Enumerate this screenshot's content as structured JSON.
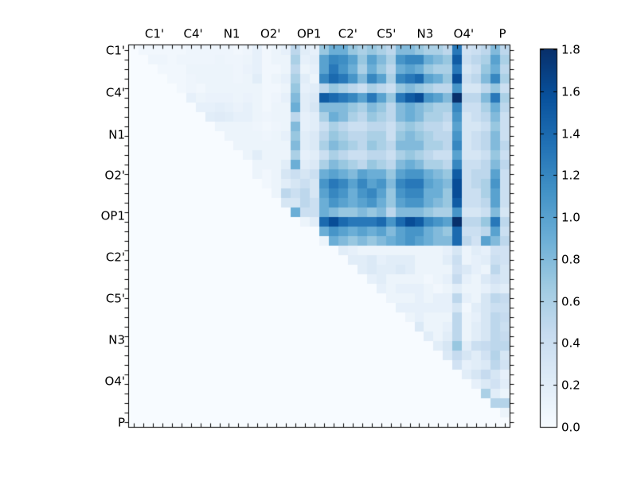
{
  "chart_data": {
    "type": "heatmap",
    "title": "",
    "xlabel": "",
    "ylabel": "",
    "x_tick_labels": [
      "C1'",
      "C4'",
      "N1",
      "O2'",
      "OP1",
      "C2'",
      "C5'",
      "N3",
      "O4'",
      "P"
    ],
    "y_tick_labels": [
      "C1'",
      "C4'",
      "N1",
      "O2'",
      "OP1",
      "C2'",
      "C5'",
      "N3",
      "O4'",
      "P"
    ],
    "n_cells": 40,
    "value_range": [
      0.0,
      1.8
    ],
    "matrix_form": "upper-triangular",
    "colormap": "Blues",
    "colormap_stops": [
      "#f7fbff",
      "#deebf7",
      "#c6dbef",
      "#9ecae1",
      "#6baed6",
      "#4292c6",
      "#2171b5",
      "#08519c",
      "#08306b"
    ],
    "colorbar": {
      "min": 0.0,
      "max": 1.8,
      "tick_step": 0.2,
      "tick_labels": [
        "1.8",
        "1.6",
        "1.4",
        "1.2",
        "1.0",
        "0.8",
        "0.6",
        "0.4",
        "0.2",
        "0.0"
      ],
      "position": "right"
    },
    "values_upper_triangle_from_diagonal": [
      [
        0,
        0.05,
        0.05,
        0.05,
        0.05,
        0.05,
        0.08,
        0.08,
        0.08,
        0.08,
        0.08,
        0.05,
        0.08,
        0.15,
        0.05,
        0.1,
        0.15,
        0.5,
        0.2,
        0.15,
        0.7,
        0.9,
        0.9,
        0.7,
        0.6,
        0.7,
        0.6,
        0.5,
        0.8,
        0.8,
        0.7,
        0.6,
        0.6,
        0.5,
        1.3,
        0.35,
        0.4,
        0.5,
        0.8,
        0.5
      ],
      [
        0,
        0.08,
        0.08,
        0.05,
        0.08,
        0.08,
        0.08,
        0.08,
        0.1,
        0.08,
        0.08,
        0.1,
        0.15,
        0.05,
        0.1,
        0.1,
        0.6,
        0.15,
        0.2,
        1,
        1.2,
        1.15,
        1,
        0.7,
        1,
        0.8,
        0.6,
        1.1,
        1.2,
        1.2,
        0.9,
        0.8,
        0.7,
        1.5,
        0.4,
        0.5,
        0.6,
        1,
        0.6
      ],
      [
        0,
        0.05,
        0.05,
        0.05,
        0.1,
        0.1,
        0.1,
        0.1,
        0.1,
        0.08,
        0.12,
        0.15,
        0.05,
        0.05,
        0.1,
        0.5,
        0.1,
        0.15,
        1,
        1.3,
        1.1,
        0.9,
        0.6,
        0.9,
        0.7,
        0.5,
        0.9,
        1,
        0.9,
        0.7,
        0.6,
        0.6,
        1.3,
        0.3,
        0.4,
        0.7,
        0.9,
        0.5
      ],
      [
        0,
        0.05,
        0.05,
        0.08,
        0.1,
        0.1,
        0.1,
        0.1,
        0.08,
        0.1,
        0.2,
        0.05,
        0.1,
        0.15,
        0.6,
        0.2,
        0.1,
        1.2,
        1.4,
        1.3,
        1.1,
        0.8,
        1.2,
        1,
        0.6,
        1.2,
        1.3,
        1.4,
        1,
        0.9,
        0.7,
        1.6,
        0.4,
        0.5,
        0.8,
        1.2,
        0.6
      ],
      [
        0,
        0.05,
        0.08,
        0.05,
        0.1,
        0.1,
        0.1,
        0.1,
        0.1,
        0.1,
        0.05,
        0.05,
        0.1,
        0.7,
        0.15,
        0.2,
        0.5,
        0.7,
        0.6,
        0.5,
        0.4,
        0.6,
        0.5,
        0.4,
        0.7,
        0.8,
        0.7,
        0.6,
        0.5,
        0.5,
        1.1,
        0.3,
        0.3,
        0.5,
        0.7,
        0.4
      ],
      [
        0,
        0.15,
        0.1,
        0.12,
        0.12,
        0.12,
        0.1,
        0.12,
        0.1,
        0.05,
        0.08,
        0.15,
        0.8,
        0.2,
        0.25,
        1.5,
        1.4,
        1.3,
        1.2,
        1,
        1.3,
        1,
        0.7,
        1.3,
        1.5,
        1.6,
        1.1,
        1,
        0.8,
        1.8,
        0.5,
        0.5,
        0.8,
        1.3,
        0.6
      ],
      [
        0,
        0.15,
        0.15,
        0.18,
        0.15,
        0.12,
        0.15,
        0.1,
        0.05,
        0.1,
        0.1,
        0.9,
        0.2,
        0.3,
        0.8,
        0.8,
        0.8,
        0.7,
        0.6,
        0.8,
        0.7,
        0.5,
        0.8,
        0.9,
        0.8,
        0.7,
        0.6,
        0.6,
        1.2,
        0.4,
        0.4,
        0.6,
        0.9,
        0.5
      ],
      [
        0,
        0.2,
        0.22,
        0.2,
        0.15,
        0.15,
        0.1,
        0.08,
        0.1,
        0.1,
        0.5,
        0.15,
        0.2,
        0.6,
        0.9,
        0.8,
        0.6,
        0.5,
        0.7,
        0.6,
        0.5,
        0.8,
        0.9,
        0.8,
        0.6,
        0.6,
        0.5,
        1.1,
        0.3,
        0.4,
        0.5,
        0.8,
        0.4
      ],
      [
        0,
        0.1,
        0.1,
        0.1,
        0.1,
        0.08,
        0.05,
        0.08,
        0.1,
        0.8,
        0.15,
        0.2,
        0.4,
        0.6,
        0.5,
        0.4,
        0.4,
        0.5,
        0.5,
        0.4,
        0.6,
        0.7,
        0.6,
        0.5,
        0.5,
        0.4,
        1,
        0.3,
        0.3,
        0.4,
        0.7,
        0.4
      ],
      [
        0,
        0.1,
        0.1,
        0.1,
        0.1,
        0.08,
        0.1,
        0.15,
        0.7,
        0.2,
        0.25,
        0.5,
        0.7,
        0.6,
        0.5,
        0.5,
        0.6,
        0.6,
        0.4,
        0.7,
        0.8,
        0.7,
        0.6,
        0.5,
        0.5,
        1.1,
        0.3,
        0.4,
        0.5,
        0.8,
        0.4
      ],
      [
        0,
        0.1,
        0.1,
        0.1,
        0.1,
        0.1,
        0.1,
        0.8,
        0.2,
        0.25,
        0.6,
        0.8,
        0.7,
        0.6,
        0.5,
        0.7,
        0.6,
        0.5,
        0.8,
        0.8,
        0.8,
        0.6,
        0.6,
        0.5,
        1.2,
        0.3,
        0.4,
        0.5,
        0.8,
        0.5
      ],
      [
        0,
        0.1,
        0.2,
        0.1,
        0.1,
        0.1,
        0.6,
        0.15,
        0.2,
        0.4,
        0.6,
        0.5,
        0.4,
        0.4,
        0.5,
        0.5,
        0.4,
        0.6,
        0.7,
        0.6,
        0.5,
        0.4,
        0.4,
        1,
        0.3,
        0.3,
        0.4,
        0.7,
        0.4
      ],
      [
        0,
        0.1,
        0.1,
        0.1,
        0.2,
        0.9,
        0.2,
        0.25,
        0.6,
        0.8,
        0.7,
        0.6,
        0.5,
        0.7,
        0.6,
        0.5,
        0.8,
        0.9,
        0.8,
        0.6,
        0.6,
        0.5,
        1.2,
        0.4,
        0.4,
        0.5,
        0.8,
        0.5
      ],
      [
        0.1,
        0.05,
        0.1,
        0.3,
        0.4,
        0.3,
        0.4,
        0.9,
        1,
        0.9,
        0.8,
        1,
        0.9,
        0.9,
        0.7,
        1,
        1.1,
        1.1,
        0.9,
        0.8,
        0.7,
        1.5,
        0.4,
        0.5,
        0.5,
        1,
        0.4
      ],
      [
        0.05,
        0.1,
        0.2,
        0.3,
        0.4,
        0.3,
        1.1,
        1.3,
        1.2,
        1,
        1.2,
        1,
        1.1,
        0.8,
        1.2,
        1.3,
        1.3,
        1,
        0.9,
        0.8,
        1.6,
        0.4,
        0.5,
        0.6,
        1.1,
        0.4
      ],
      [
        0.1,
        0.5,
        0.4,
        0.5,
        0.3,
        1,
        1.2,
        1.1,
        0.9,
        1.1,
        1.2,
        1,
        0.7,
        1.1,
        1.2,
        1.2,
        0.9,
        0.9,
        0.7,
        1.6,
        0.4,
        0.4,
        0.6,
        1,
        0.4
      ],
      [
        0.3,
        0.3,
        0.5,
        0.4,
        0.9,
        1.1,
        1,
        0.9,
        1,
        1.1,
        0.9,
        0.7,
        1,
        1.1,
        1.1,
        0.9,
        0.8,
        0.7,
        1.5,
        0.4,
        0.4,
        0.5,
        1,
        0.4
      ],
      [
        0.9,
        0.4,
        0.4,
        0.9,
        0.8,
        0.7,
        0.7,
        0.8,
        0.7,
        0.8,
        0.5,
        0.8,
        0.8,
        0.8,
        0.7,
        0.6,
        0.6,
        1.1,
        0.3,
        0.3,
        0.4,
        0.8,
        0.3
      ],
      [
        0.1,
        0.2,
        1.4,
        1.6,
        1.4,
        1.3,
        1.3,
        1.3,
        1.4,
        1.1,
        1.4,
        1.6,
        1.5,
        1.2,
        1.1,
        1,
        1.8,
        0.5,
        0.5,
        0.7,
        1.3,
        0.5
      ],
      [
        0,
        0.9,
        1.1,
        1,
        0.9,
        1,
        0.9,
        1,
        0.8,
        1,
        1.1,
        1.1,
        0.9,
        0.8,
        0.7,
        1.4,
        0.4,
        0.4,
        0.5,
        1,
        0.4
      ],
      [
        0.1,
        0.9,
        0.8,
        0.7,
        0.8,
        0.7,
        0.8,
        0.9,
        1,
        1.1,
        1,
        0.9,
        0.8,
        0.8,
        1.4,
        0.5,
        0.35,
        1,
        0.8,
        0.5
      ],
      [
        0,
        0.2,
        0.15,
        0.1,
        0.1,
        0.1,
        0.1,
        0.1,
        0.1,
        0.1,
        0.1,
        0.1,
        0.15,
        0.3,
        0.1,
        0.2,
        0.15,
        0.35,
        0.35
      ],
      [
        0,
        0.2,
        0.2,
        0.25,
        0.15,
        0.2,
        0.2,
        0.2,
        0.1,
        0.1,
        0.1,
        0.2,
        0.4,
        0.1,
        0.15,
        0.2,
        0.4,
        0.35
      ],
      [
        0,
        0.2,
        0.25,
        0.2,
        0.2,
        0.25,
        0.2,
        0.1,
        0.1,
        0.1,
        0.1,
        0.35,
        0.25,
        0.15,
        0.1,
        0.5,
        0.3
      ],
      [
        0,
        0.15,
        0.2,
        0.1,
        0.1,
        0.1,
        0.1,
        0.05,
        0.1,
        0.15,
        0.45,
        0.15,
        0.1,
        0.25,
        0.35,
        0.3
      ],
      [
        0,
        0.15,
        0.1,
        0.15,
        0.15,
        0.15,
        0.1,
        0.05,
        0.1,
        0.2,
        0.1,
        0.1,
        0.15,
        0.25,
        0.2
      ],
      [
        0,
        0.1,
        0.1,
        0.1,
        0.15,
        0.1,
        0.15,
        0.15,
        0.5,
        0.15,
        0.1,
        0.3,
        0.5,
        0.45
      ],
      [
        0,
        0.15,
        0.15,
        0.15,
        0.15,
        0.15,
        0.15,
        0.3,
        0.05,
        0.2,
        0.3,
        0.4,
        0.4
      ],
      [
        0,
        0.1,
        0.15,
        0.1,
        0.1,
        0.1,
        0.5,
        0.1,
        0.15,
        0.3,
        0.5,
        0.45
      ],
      [
        0,
        0.25,
        0.1,
        0.1,
        0.15,
        0.5,
        0.1,
        0.2,
        0.3,
        0.5,
        0.4
      ],
      [
        0,
        0.2,
        0.1,
        0.2,
        0.5,
        0.1,
        0.2,
        0.3,
        0.5,
        0.45
      ],
      [
        0,
        0.2,
        0.3,
        0.7,
        0.2,
        0.4,
        0.45,
        0.5,
        0.5
      ],
      [
        0,
        0.25,
        0.45,
        0.3,
        0.2,
        0.35,
        0.55,
        0.3
      ],
      [
        0,
        0.35,
        0.15,
        0.2,
        0.25,
        0.5,
        0.35
      ],
      [
        0,
        0.2,
        0.3,
        0.45,
        0.3,
        0.15
      ],
      [
        0,
        0.15,
        0.25,
        0.35,
        0.2
      ],
      [
        0,
        0.6,
        0.2,
        0.1
      ],
      [
        0,
        0.55,
        0.55
      ],
      [
        0,
        0.1
      ],
      [
        0
      ]
    ]
  }
}
